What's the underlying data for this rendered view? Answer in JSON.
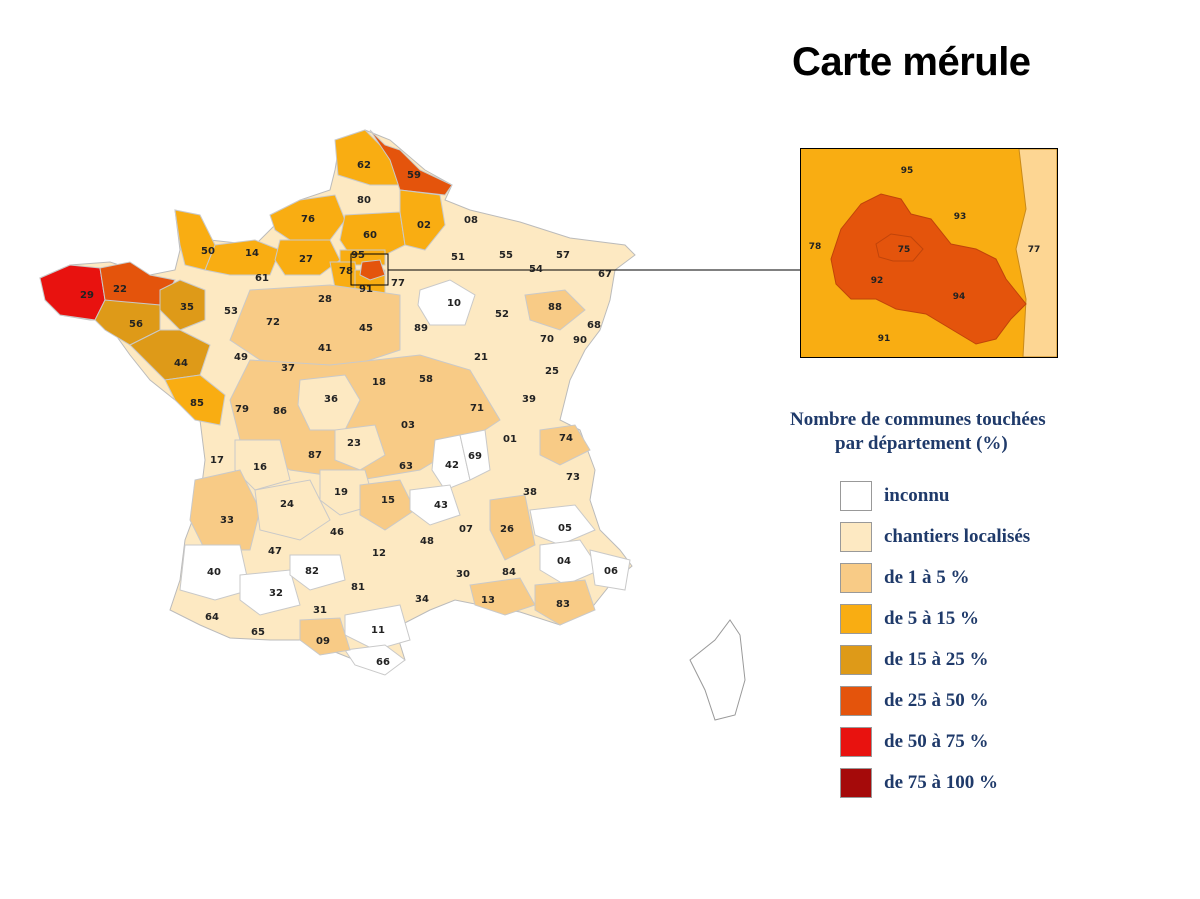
{
  "title": "Carte mérule",
  "legend": {
    "title_line1": "Nombre de communes touchées",
    "title_line2": "par département  (%)",
    "items": [
      {
        "label": "inconnu",
        "color": "#ffffff"
      },
      {
        "label": "chantiers localisés",
        "color": "#fde9c2"
      },
      {
        "label": "de 1 à 5 %",
        "color": "#f8cb86"
      },
      {
        "label": "de 5 à 15 %",
        "color": "#f9ad12"
      },
      {
        "label": "de 15 à 25 %",
        "color": "#de9a18"
      },
      {
        "label": "de 25 à 50 %",
        "color": "#e4540c"
      },
      {
        "label": "de 50 à 75 %",
        "color": "#e8120f"
      },
      {
        "label": "de 75 à 100 %",
        "color": "#a50a0a"
      }
    ]
  },
  "map": {
    "departments": [
      {
        "code": "62",
        "category": 4
      },
      {
        "code": "59",
        "category": 6
      },
      {
        "code": "80",
        "category": 3
      },
      {
        "code": "02",
        "category": 4
      },
      {
        "code": "08",
        "category": 2
      },
      {
        "code": "76",
        "category": 4
      },
      {
        "code": "60",
        "category": 4
      },
      {
        "code": "50",
        "category": 4
      },
      {
        "code": "14",
        "category": 4
      },
      {
        "code": "27",
        "category": 4
      },
      {
        "code": "95",
        "category": 4
      },
      {
        "code": "78",
        "category": 4
      },
      {
        "code": "91",
        "category": 4
      },
      {
        "code": "77",
        "category": 3
      },
      {
        "code": "51",
        "category": 2
      },
      {
        "code": "55",
        "category": 2
      },
      {
        "code": "57",
        "category": 2
      },
      {
        "code": "54",
        "category": 2
      },
      {
        "code": "67",
        "category": 2
      },
      {
        "code": "29",
        "category": 7
      },
      {
        "code": "22",
        "category": 6
      },
      {
        "code": "35",
        "category": 5
      },
      {
        "code": "56",
        "category": 5
      },
      {
        "code": "44",
        "category": 5
      },
      {
        "code": "61",
        "category": 3
      },
      {
        "code": "53",
        "category": 3
      },
      {
        "code": "72",
        "category": 3
      },
      {
        "code": "28",
        "category": 3
      },
      {
        "code": "45",
        "category": 3
      },
      {
        "code": "10",
        "category": 1
      },
      {
        "code": "89",
        "category": 2
      },
      {
        "code": "52",
        "category": 2
      },
      {
        "code": "88",
        "category": 3
      },
      {
        "code": "68",
        "category": 2
      },
      {
        "code": "70",
        "category": 2
      },
      {
        "code": "90",
        "category": 2
      },
      {
        "code": "49",
        "category": 3
      },
      {
        "code": "41",
        "category": 3
      },
      {
        "code": "37",
        "category": 3
      },
      {
        "code": "21",
        "category": 2
      },
      {
        "code": "85",
        "category": 4
      },
      {
        "code": "79",
        "category": 3
      },
      {
        "code": "86",
        "category": 3
      },
      {
        "code": "36",
        "category": 2
      },
      {
        "code": "18",
        "category": 3
      },
      {
        "code": "58",
        "category": 3
      },
      {
        "code": "71",
        "category": 3
      },
      {
        "code": "25",
        "category": 2
      },
      {
        "code": "39",
        "category": 2
      },
      {
        "code": "17",
        "category": 3
      },
      {
        "code": "16",
        "category": 2
      },
      {
        "code": "87",
        "category": 3
      },
      {
        "code": "23",
        "category": 2
      },
      {
        "code": "03",
        "category": 3
      },
      {
        "code": "63",
        "category": 3
      },
      {
        "code": "42",
        "category": 1
      },
      {
        "code": "69",
        "category": 1
      },
      {
        "code": "01",
        "category": 2
      },
      {
        "code": "74",
        "category": 3
      },
      {
        "code": "73",
        "category": 2
      },
      {
        "code": "24",
        "category": 2
      },
      {
        "code": "19",
        "category": 2
      },
      {
        "code": "15",
        "category": 3
      },
      {
        "code": "43",
        "category": 1
      },
      {
        "code": "38",
        "category": 2
      },
      {
        "code": "33",
        "category": 3
      },
      {
        "code": "46",
        "category": 2
      },
      {
        "code": "07",
        "category": 2
      },
      {
        "code": "26",
        "category": 3
      },
      {
        "code": "05",
        "category": 1
      },
      {
        "code": "47",
        "category": 2
      },
      {
        "code": "12",
        "category": 2
      },
      {
        "code": "48",
        "category": 2
      },
      {
        "code": "04",
        "category": 1
      },
      {
        "code": "40",
        "category": 1
      },
      {
        "code": "82",
        "category": 1
      },
      {
        "code": "32",
        "category": 1
      },
      {
        "code": "81",
        "category": 2
      },
      {
        "code": "30",
        "category": 2
      },
      {
        "code": "84",
        "category": 2
      },
      {
        "code": "06",
        "category": 1
      },
      {
        "code": "64",
        "category": 2
      },
      {
        "code": "65",
        "category": 2
      },
      {
        "code": "31",
        "category": 2
      },
      {
        "code": "09",
        "category": 3
      },
      {
        "code": "11",
        "category": 1
      },
      {
        "code": "34",
        "category": 2
      },
      {
        "code": "13",
        "category": 3
      },
      {
        "code": "83",
        "category": 3
      },
      {
        "code": "66",
        "category": 1
      }
    ]
  },
  "inset": {
    "departments": [
      {
        "code": "95",
        "category": 4
      },
      {
        "code": "93",
        "category": 4
      },
      {
        "code": "78",
        "category": 4
      },
      {
        "code": "75",
        "category": 6
      },
      {
        "code": "92",
        "category": 6
      },
      {
        "code": "94",
        "category": 6
      },
      {
        "code": "77",
        "category": 3
      },
      {
        "code": "91",
        "category": 4
      }
    ]
  }
}
